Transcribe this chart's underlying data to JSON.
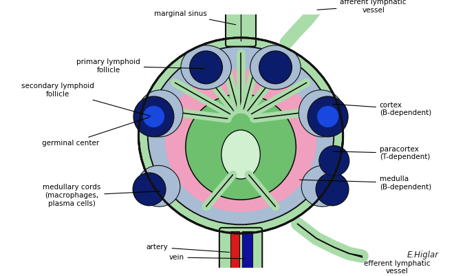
{
  "bg_color": "#ffffff",
  "outline_color": "#111111",
  "light_green": "#aadcaa",
  "medium_green": "#6ec06e",
  "pale_green": "#d0f0d0",
  "light_blue_gray": "#a8bcd4",
  "pink": "#f0a0be",
  "dark_blue": "#0c1c6c",
  "bright_blue": "#1848e0",
  "red": "#dc1818",
  "blue_vein": "#1010a0",
  "labels": {
    "marginal_sinus": "marginal sinus",
    "afferent": "afferent lymphatic\nvessel",
    "primary_follicle": "primary lymphoid\nfollicle",
    "cortex": "cortex\n(B-dependent)",
    "secondary_follicle": "secondary lymphoid\nfollicle",
    "paracortex": "paracortex\n(T-dependent)",
    "germinal_center": "germinal center",
    "medullary_cords": "medullary cords\n(macrophages,\nplasma cells)",
    "medulla": "medulla\n(B-dependent)",
    "artery": "artery",
    "vein": "vein",
    "efferent": "efferent lymphatic\nvessel"
  }
}
